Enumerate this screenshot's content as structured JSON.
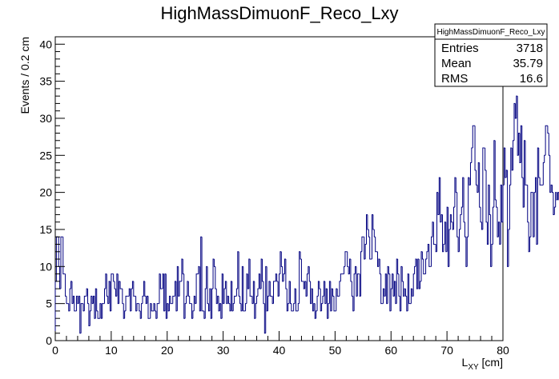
{
  "chart_data": {
    "type": "histogram",
    "title": "HighMassDimuonF_Reco_Lxy",
    "xlabel_main": "L",
    "xlabel_sub": "XY",
    "xlabel_unit": " [cm]",
    "ylabel": "Events / 0.2 cm",
    "xlim": [
      0,
      80
    ],
    "ylim": [
      0,
      41
    ],
    "bin_width": 0.2,
    "x_ticks": [
      "0",
      "10",
      "20",
      "30",
      "40",
      "50",
      "60",
      "70",
      "80"
    ],
    "y_ticks": [
      "0",
      "5",
      "10",
      "15",
      "20",
      "25",
      "30",
      "35",
      "40"
    ],
    "line_color": "#000080",
    "stats": {
      "name": "HighMassDimuonF_Reco_Lxy",
      "rows": [
        {
          "label": "Entries",
          "value": "3718"
        },
        {
          "label": "Mean",
          "value": "35.79"
        },
        {
          "label": "RMS",
          "value": "16.6"
        }
      ]
    },
    "values": [
      8,
      14,
      14,
      10,
      7,
      14,
      14,
      9,
      9,
      6,
      5,
      5,
      4,
      7,
      8,
      5,
      6,
      4,
      4,
      6,
      5,
      6,
      1,
      5,
      5,
      4,
      6,
      6,
      7,
      5,
      2,
      4,
      6,
      5,
      6,
      3,
      7,
      4,
      3,
      3,
      5,
      3,
      5,
      5,
      7,
      9,
      6,
      5,
      8,
      4,
      9,
      9,
      8,
      7,
      6,
      9,
      5,
      8,
      7,
      7,
      5,
      3,
      4,
      6,
      6,
      6,
      7,
      4,
      7,
      8,
      6,
      6,
      4,
      5,
      5,
      4,
      3,
      5,
      6,
      8,
      6,
      5,
      6,
      3,
      3,
      5,
      4,
      4,
      5,
      4,
      3,
      5,
      5,
      9,
      7,
      7,
      9,
      4,
      9,
      3,
      5,
      4,
      6,
      5,
      5,
      6,
      6,
      8,
      4,
      10,
      6,
      8,
      8,
      11,
      9,
      3,
      5,
      6,
      8,
      6,
      5,
      5,
      3,
      4,
      6,
      5,
      9,
      9,
      10,
      4,
      14,
      4,
      4,
      3,
      7,
      10,
      5,
      4,
      7,
      3,
      7,
      11,
      10,
      7,
      5,
      6,
      4,
      5,
      3,
      9,
      5,
      7,
      8,
      5,
      6,
      5,
      4,
      8,
      4,
      5,
      6,
      6,
      7,
      12,
      6,
      5,
      4,
      10,
      4,
      4,
      5,
      9,
      7,
      11,
      6,
      6,
      5,
      8,
      3,
      5,
      6,
      7,
      9,
      7,
      11,
      8,
      5,
      1,
      10,
      4,
      6,
      8,
      6,
      6,
      5,
      8,
      8,
      9,
      8,
      6,
      9,
      12,
      10,
      8,
      9,
      11,
      7,
      4,
      5,
      8,
      5,
      4,
      4,
      5,
      7,
      4,
      4,
      5,
      12,
      11,
      8,
      8,
      7,
      8,
      6,
      9,
      10,
      8,
      5,
      7,
      4,
      5,
      3,
      4,
      6,
      8,
      7,
      4,
      5,
      6,
      8,
      5,
      7,
      3,
      5,
      8,
      4,
      7,
      6,
      4,
      4,
      7,
      6,
      6,
      8,
      9,
      9,
      9,
      10,
      12,
      12,
      10,
      9,
      11,
      8,
      6,
      4,
      9,
      10,
      6,
      9,
      9,
      6,
      12,
      14,
      14,
      11,
      13,
      17,
      15,
      14,
      11,
      11,
      17,
      15,
      14,
      12,
      12,
      10,
      11,
      9,
      5,
      5,
      7,
      6,
      9,
      5,
      10,
      9,
      4,
      7,
      9,
      6,
      8,
      5,
      11,
      9,
      6,
      4,
      10,
      8,
      6,
      7,
      6,
      4,
      9,
      5,
      5,
      7,
      6,
      9,
      10,
      11,
      7,
      11,
      7,
      8,
      12,
      11,
      9,
      9,
      11,
      12,
      13,
      10,
      10,
      14,
      16,
      13,
      13,
      12,
      20,
      17,
      22,
      16,
      17,
      12,
      13,
      16,
      12,
      18,
      10,
      15,
      17,
      16,
      15,
      18,
      22,
      20,
      14,
      12,
      15,
      17,
      18,
      22,
      16,
      14,
      10,
      14,
      22,
      21,
      24,
      26,
      29,
      29,
      23,
      21,
      20,
      24,
      18,
      16,
      15,
      26,
      26,
      23,
      16,
      13,
      21,
      17,
      10,
      13,
      18,
      27,
      19,
      18,
      14,
      16,
      13,
      21,
      16,
      21,
      26,
      22,
      23,
      10,
      15,
      21,
      26,
      23,
      27,
      32,
      30,
      33,
      25,
      28,
      24,
      29,
      22,
      18,
      27,
      21,
      21,
      16,
      12,
      14,
      20,
      20,
      14,
      20,
      22,
      13,
      26,
      22,
      21,
      21,
      21,
      24,
      25,
      29,
      29,
      28,
      25,
      20,
      21,
      20,
      17,
      18,
      20,
      19,
      20,
      19,
      14,
      20,
      22,
      19,
      22,
      18,
      12,
      10,
      19,
      11,
      15,
      13,
      10,
      20,
      16,
      17,
      17,
      22,
      30,
      19,
      19,
      18,
      14,
      12,
      13,
      9,
      10,
      14,
      9,
      16,
      12,
      12,
      15,
      14,
      13,
      14,
      15,
      18,
      13,
      12,
      14,
      14,
      19,
      20,
      14,
      11,
      10,
      16,
      17,
      16,
      15,
      14,
      7,
      13,
      12,
      10,
      14,
      11,
      6,
      12,
      13,
      7,
      13,
      12,
      8,
      9,
      8,
      8,
      16,
      17,
      11,
      8,
      10,
      7,
      12,
      9,
      16,
      11,
      15,
      8,
      6,
      10,
      11,
      9,
      14,
      14,
      12,
      7,
      6,
      10,
      8,
      10,
      9,
      6,
      5,
      6,
      7,
      7,
      4,
      12,
      9,
      11,
      8,
      10,
      9,
      6,
      5,
      7,
      7,
      4,
      4,
      5,
      5,
      3,
      2,
      3,
      1,
      3,
      3,
      4,
      2,
      3,
      2,
      0,
      1,
      0,
      1,
      0,
      0,
      2,
      0,
      1,
      1,
      2,
      0,
      2,
      2,
      1,
      2,
      0,
      1,
      1,
      0,
      0,
      1,
      0,
      2,
      1,
      0,
      2,
      1,
      1,
      1,
      0,
      1,
      0,
      0,
      0,
      0,
      1,
      1,
      0,
      0,
      0,
      2,
      0,
      1,
      1,
      0,
      0,
      0,
      0,
      1,
      0,
      0,
      1,
      1,
      0,
      0,
      0,
      0,
      0,
      1,
      2,
      0,
      0,
      0,
      0,
      0,
      1,
      0,
      0,
      0,
      1,
      0,
      0,
      0,
      1,
      0,
      1,
      0,
      0,
      0,
      0,
      0,
      1,
      0,
      0,
      0,
      1,
      0,
      0,
      0,
      0,
      1,
      0,
      0,
      0,
      1
    ]
  }
}
